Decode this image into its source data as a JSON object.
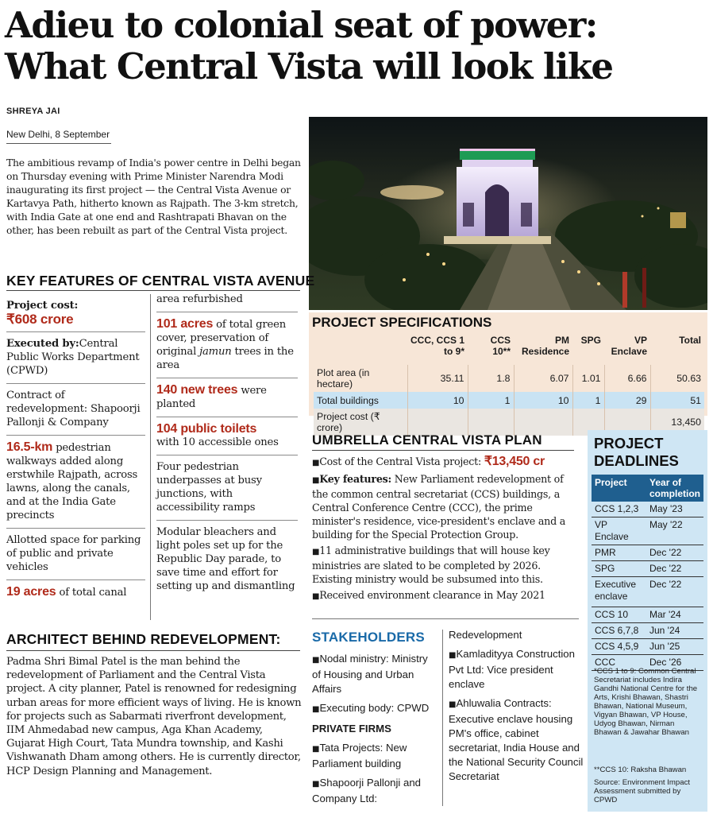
{
  "headline": {
    "line1": "Adieu to colonial seat of power:",
    "line2": "What Central Vista will look like"
  },
  "byline": "SHREYA JAI",
  "dateline": "New Delhi, 8 September",
  "intro": "The ambitious revamp of India's power centre in Delhi began on Thursday evening with Prime Minister Narendra Modi inaugurating its first project — the Central Vista Avenue or Kartavya Path, hitherto known as Rajpath. The 3-km stretch, with India Gate at one end and Rashtrapati Bhavan on the other, has been rebuilt as part of the Central Vista project.",
  "key_features": {
    "title": "KEY FEATURES OF CENTRAL VISTA AVENUE",
    "project_cost_label": "Project cost:",
    "project_cost_value": "₹608 crore",
    "executed_label": "Executed by:",
    "executed_text": "Central Public Works Department (CPWD)",
    "contract_text": "Contract of redevelopment: Shapoorji Pallonji & Company",
    "walkways_value": "16.5-km",
    "walkways_text": " pedestrian walkways added along erstwhile Rajpath, across lawns, along the canals, and at the India Gate precincts",
    "parking_text": "Allotted space for parking of public and private vehicles",
    "canal_value": "19 acres",
    "canal_text": " of total canal",
    "canal_cont": "area refurbished",
    "green_value": "101 acres",
    "green_text_a": " of total green cover, preservation of original ",
    "green_italic": "jamun",
    "green_text_b": " trees in the area",
    "trees_value": "140 new trees",
    "trees_text": " were planted",
    "toilets_value": "104 public toilets",
    "toilets_text": "with 10 accessible ones",
    "underpass_text": "Four pedestrian underpasses at busy junctions, with accessibility ramps",
    "bleachers_text": "Modular bleachers and light poles set up for the Republic Day parade, to save time and effort for setting up and dismantling"
  },
  "photo": {
    "icon": "india-gate-night-photo"
  },
  "project_specs": {
    "title": "PROJECT SPECIFICATIONS",
    "headers": [
      "",
      "CCC, CCS 1 to 9*",
      "CCS 10**",
      "PM Residence",
      "SPG",
      "VP Enclave",
      "Total"
    ],
    "rows": [
      [
        "Plot area (in hectare)",
        "35.11",
        "1.8",
        "6.07",
        "1.01",
        "6.66",
        "50.63"
      ],
      [
        "Total buildings",
        "10",
        "1",
        "10",
        "1",
        "29",
        "51"
      ],
      [
        "Project cost (₹ crore)",
        "",
        "",
        "",
        "",
        "",
        "13,450"
      ]
    ]
  },
  "umbrella": {
    "title": "UMBRELLA CENTRAL VISTA PLAN",
    "bullet": "■",
    "cost_label": "Cost of the Central Vista project: ",
    "cost_value": "₹13,450 cr",
    "key_label": "Key features:",
    "key_text": " New Parliament redevelopment of the common central secretariat (CCS) buildings, a Central Conference Centre (CCC), the prime minister's residence, vice-president's enclave and a building for the Special Protection Group.",
    "admin_text": "11 administrative buildings that will house key ministries are slated to be completed by 2026. Existing ministry would be subsumed into this.",
    "clearance_text": "Received environment clearance in May 2021"
  },
  "stakeholders": {
    "title": "STAKEHOLDERS",
    "nodal": "Nodal ministry: Ministry of Housing and Urban Affairs",
    "executing": "Executing body: CPWD",
    "private_head": "PRIVATE FIRMS",
    "tata": "Tata Projects: New Parliament building",
    "shapoorji": "Shapoorji Pallonji and Company Ltd:",
    "redevelopment": "Redevelopment",
    "kamladityya": "Kamladityya Construction Pvt Ltd: Vice president enclave",
    "ahluwalia": "Ahluwalia Contracts: Executive enclave housing PM's office, cabinet secretariat, India House and the National Security Council Secretariat"
  },
  "deadlines": {
    "title_line1": "PROJECT",
    "title_line2": "DEADLINES",
    "col_project": "Project",
    "col_year": "Year of completion",
    "rows": [
      [
        "CCS 1,2,3",
        "May '23"
      ],
      [
        "VP Enclave",
        "May '22"
      ],
      [
        "PMR",
        "Dec '22"
      ],
      [
        "SPG",
        "Dec '22"
      ],
      [
        "Executive enclave",
        "Dec '22"
      ],
      [
        "CCS 10",
        "Mar '24"
      ],
      [
        "CCS 6,7,8",
        "Jun '24"
      ],
      [
        "CCS 4,5,9",
        "Jun '25"
      ],
      [
        "CCC",
        "Dec '26"
      ]
    ],
    "note1": "*CCS 1 to 9: Common Central Secretariat includes Indira Gandhi National Centre for the Arts, Krishi Bhawan, Shastri Bhawan, National Museum, Vigyan Bhawan, VP House, Udyog Bhawan, Nirman Bhawan & Jawahar Bhawan",
    "note2": "**CCS 10: Raksha Bhawan",
    "source": "Source: Environment Impact Assessment submitted by CPWD"
  },
  "architect": {
    "title": "ARCHITECT BEHIND REDEVELOPMENT:",
    "text": "Padma Shri Bimal Patel is the man behind the redevelopment of Parliament and the Central Vista project. A city planner, Patel is renowned for redesigning urban areas for more efficient ways of living. He is known for projects such as Sabarmati riverfront development, IIM Ahmedabad new campus, Aga Khan Academy, Gujarat High Court, Tata Mundra township, and Kashi Vishwanath Dham among others. He is currently director, HCP Design Planning and Management."
  }
}
